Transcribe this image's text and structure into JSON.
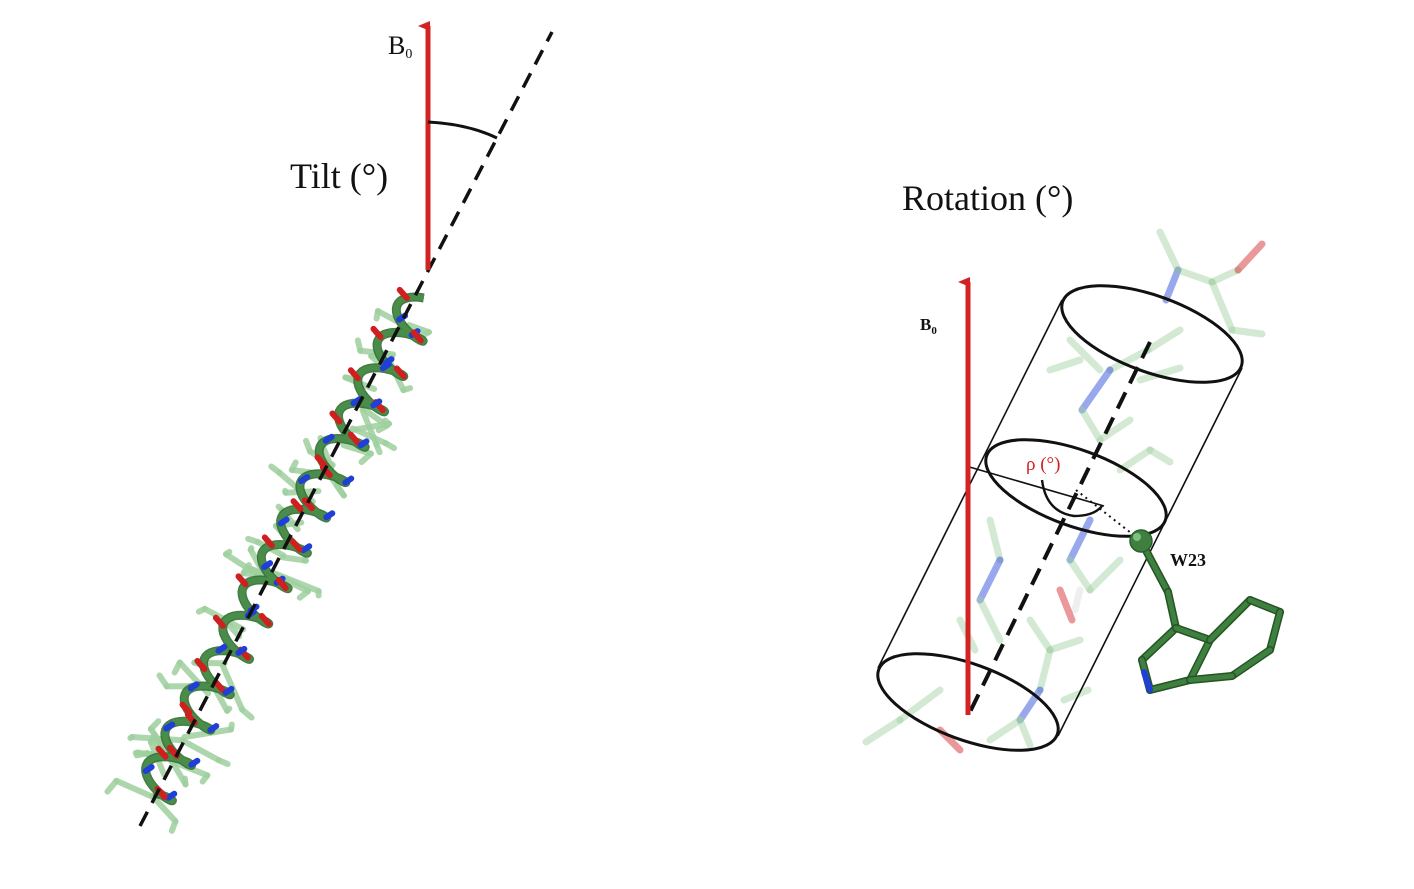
{
  "left_panel": {
    "field_label_main": "B",
    "field_label_sub": "0",
    "tilt_label": "Tilt (°)"
  },
  "right_panel": {
    "rotation_label": "Rotation (°)",
    "field_label_main": "B",
    "field_label_sub": "0",
    "rho_label": "ρ (°)",
    "residue_label": "W23"
  },
  "colors": {
    "field_arrow": "#d32222",
    "helix_backbone": "#4a8c4a",
    "helix_light": "#9fd09f",
    "nitrogen": "#1f3fd8",
    "oxygen": "#d01f1f",
    "axis_line": "#111111"
  }
}
